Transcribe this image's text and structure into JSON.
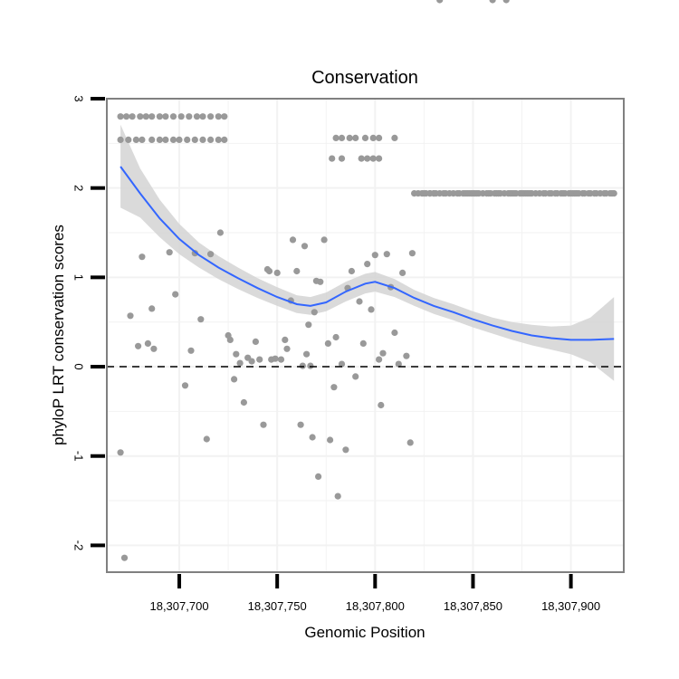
{
  "chart_data": {
    "type": "scatter",
    "title": "Conservation",
    "xlabel": "Genomic Position",
    "ylabel": "phyloP LRT conservation scores",
    "xlim": [
      18307663,
      18307927
    ],
    "ylim": [
      -2.3,
      3.0
    ],
    "x_ticks": [
      {
        "value": 18307700,
        "label": "18,307,700"
      },
      {
        "value": 18307750,
        "label": "18,307,750"
      },
      {
        "value": 18307800,
        "label": "18,307,800"
      },
      {
        "value": 18307850,
        "label": "18,307,850"
      },
      {
        "value": 18307900,
        "label": "18,307,900"
      }
    ],
    "y_ticks": [
      {
        "value": -2,
        "label": "-2"
      },
      {
        "value": -1,
        "label": "-1"
      },
      {
        "value": 0,
        "label": "0"
      },
      {
        "value": 1,
        "label": "1"
      },
      {
        "value": 2,
        "label": "2"
      },
      {
        "value": 3,
        "label": "3"
      }
    ],
    "reference_line": {
      "y": 0,
      "style": "dashed"
    },
    "colors": {
      "points": "#999999",
      "smooth": "#3366ff",
      "ribbon": "#d3d3d3",
      "panel_border": "#808080",
      "grid": "#f2f2f2"
    },
    "points_x": [
      18307670,
      18307673,
      18307676,
      18307680,
      18307683,
      18307686,
      18307690,
      18307693,
      18307697,
      18307701,
      18307705,
      18307709,
      18307712,
      18307716,
      18307720,
      18307723,
      18307670,
      18307674,
      18307678,
      18307681,
      18307686,
      18307690,
      18307693,
      18307697,
      18307700,
      18307704,
      18307708,
      18307712,
      18307716,
      18307720,
      18307723,
      18307670,
      18307672,
      18307675,
      18307679,
      18307681,
      18307684,
      18307686,
      18307687,
      18307695,
      18307698,
      18307703,
      18307706,
      18307708,
      18307711,
      18307714,
      18307716,
      18307721,
      18307725,
      18307726,
      18307728,
      18307729,
      18307731,
      18307733,
      18307735,
      18307737,
      18307739,
      18307741,
      18307743,
      18307745,
      18307746,
      18307747,
      18307749,
      18307750,
      18307752,
      18307754,
      18307755,
      18307757,
      18307758,
      18307760,
      18307762,
      18307763,
      18307764,
      18307765,
      18307766,
      18307767,
      18307768,
      18307769,
      18307770,
      18307771,
      18307772,
      18307774,
      18307776,
      18307777,
      18307779,
      18307780,
      18307781,
      18307783,
      18307785,
      18307786,
      18307788,
      18307790,
      18307792,
      18307794,
      18307796,
      18307798,
      18307800,
      18307802,
      18307803,
      18307804,
      18307806,
      18307808,
      18307810,
      18307812,
      18307814,
      18307816,
      18307818,
      18307819,
      18307780,
      18307783,
      18307787,
      18307790,
      18307795,
      18307799,
      18307802,
      18307810,
      18307778,
      18307783,
      18307793,
      18307796,
      18307799,
      18307802,
      18307820,
      18307822,
      18307824,
      18307826,
      18307828,
      18307830,
      18307831,
      18307833,
      18307835,
      18307836,
      18307838,
      18307840,
      18307842,
      18307843,
      18307845,
      18307846,
      18307847,
      18307848,
      18307849,
      18307850,
      18307851,
      18307852,
      18307853,
      18307855,
      18307857,
      18307858,
      18307859,
      18307861,
      18307862,
      18307863,
      18307864,
      18307866,
      18307868,
      18307869,
      18307870,
      18307871,
      18307872,
      18307874,
      18307875,
      18307876,
      18307877,
      18307878,
      18307879,
      18307880,
      18307882,
      18307884,
      18307886,
      18307887,
      18307889,
      18307890,
      18307892,
      18307893,
      18307895,
      18307896,
      18307897,
      18307899,
      18307900,
      18307901,
      18307902,
      18307903,
      18307904,
      18307906,
      18307907,
      18307909,
      18307910,
      18307912,
      18307913,
      18307915,
      18307917,
      18307918,
      18307920,
      18307921,
      18307922,
      18307825,
      18307828,
      18307830,
      18307833,
      18307860,
      18307867
    ],
    "points_y": [
      2.8,
      2.8,
      2.8,
      2.8,
      2.8,
      2.8,
      2.8,
      2.8,
      2.8,
      2.8,
      2.8,
      2.8,
      2.8,
      2.8,
      2.8,
      2.8,
      2.54,
      2.54,
      2.54,
      2.54,
      2.54,
      2.54,
      2.54,
      2.54,
      2.54,
      2.54,
      2.54,
      2.54,
      2.54,
      2.54,
      2.54,
      -0.96,
      -2.14,
      0.57,
      0.23,
      1.23,
      0.26,
      0.65,
      0.2,
      1.28,
      0.81,
      -0.21,
      0.18,
      1.27,
      0.53,
      -0.81,
      1.26,
      1.5,
      0.35,
      0.3,
      -0.14,
      0.14,
      0.04,
      -0.4,
      0.1,
      0.06,
      0.28,
      0.08,
      -0.65,
      1.09,
      1.07,
      0.08,
      0.09,
      1.05,
      0.08,
      0.3,
      0.2,
      0.74,
      1.42,
      1.07,
      -0.65,
      0.01,
      1.35,
      0.14,
      0.47,
      0.01,
      -0.79,
      0.61,
      0.96,
      -1.23,
      0.95,
      1.42,
      0.26,
      -0.82,
      -0.23,
      0.33,
      -1.45,
      0.03,
      -0.93,
      0.88,
      1.07,
      -0.11,
      0.73,
      0.26,
      1.15,
      0.64,
      1.25,
      0.08,
      -0.43,
      0.15,
      1.26,
      0.89,
      0.38,
      0.03,
      1.05,
      0.12,
      -0.85,
      1.27,
      2.56,
      2.56,
      2.56,
      2.56,
      2.56,
      2.56,
      2.56,
      2.56,
      2.33,
      2.33,
      2.33,
      2.33,
      2.33,
      2.33,
      1.94,
      1.94,
      1.94,
      1.94,
      1.94,
      1.94,
      1.94,
      1.94,
      1.94,
      1.94,
      1.94,
      1.94,
      1.94,
      1.94,
      1.94,
      1.94,
      1.94,
      1.94,
      1.94,
      1.94,
      1.94,
      1.94,
      1.94,
      1.94,
      1.94,
      1.94,
      1.94,
      1.94,
      1.94,
      1.94,
      1.94,
      1.94,
      1.94,
      1.94,
      1.94,
      1.94,
      1.94,
      1.94,
      1.94,
      1.94,
      1.94,
      1.94,
      1.94,
      1.94,
      1.94,
      1.94,
      1.94,
      1.94,
      1.94,
      1.94,
      1.94,
      1.94,
      1.94,
      1.94,
      1.94,
      1.94,
      1.94,
      1.94,
      1.94,
      1.94,
      1.94,
      1.94,
      1.94,
      1.94,
      1.94,
      1.94,
      1.94,
      1.94,
      1.94,
      1.94,
      1.94,
      1.94,
      1.94,
      1.94,
      1.94,
      1.94
    ],
    "smooth": {
      "x": [
        18307670,
        18307680,
        18307690,
        18307700,
        18307710,
        18307720,
        18307730,
        18307740,
        18307750,
        18307760,
        18307767,
        18307775,
        18307785,
        18307795,
        18307800,
        18307810,
        18307820,
        18307830,
        18307840,
        18307850,
        18307860,
        18307870,
        18307880,
        18307890,
        18307900,
        18307910,
        18307922
      ],
      "y": [
        2.24,
        1.94,
        1.66,
        1.43,
        1.25,
        1.11,
        0.99,
        0.88,
        0.78,
        0.7,
        0.68,
        0.72,
        0.84,
        0.93,
        0.95,
        0.88,
        0.77,
        0.68,
        0.61,
        0.53,
        0.46,
        0.4,
        0.35,
        0.32,
        0.3,
        0.3,
        0.31
      ],
      "lower": [
        1.78,
        1.67,
        1.45,
        1.26,
        1.11,
        0.98,
        0.87,
        0.77,
        0.68,
        0.6,
        0.58,
        0.62,
        0.73,
        0.82,
        0.84,
        0.78,
        0.68,
        0.59,
        0.52,
        0.44,
        0.37,
        0.3,
        0.24,
        0.19,
        0.14,
        0.05,
        -0.16
      ],
      "upper": [
        2.71,
        2.22,
        1.87,
        1.6,
        1.39,
        1.24,
        1.11,
        0.99,
        0.89,
        0.8,
        0.78,
        0.83,
        0.95,
        1.04,
        1.06,
        0.98,
        0.86,
        0.77,
        0.7,
        0.62,
        0.55,
        0.5,
        0.47,
        0.45,
        0.46,
        0.55,
        0.78
      ]
    }
  }
}
